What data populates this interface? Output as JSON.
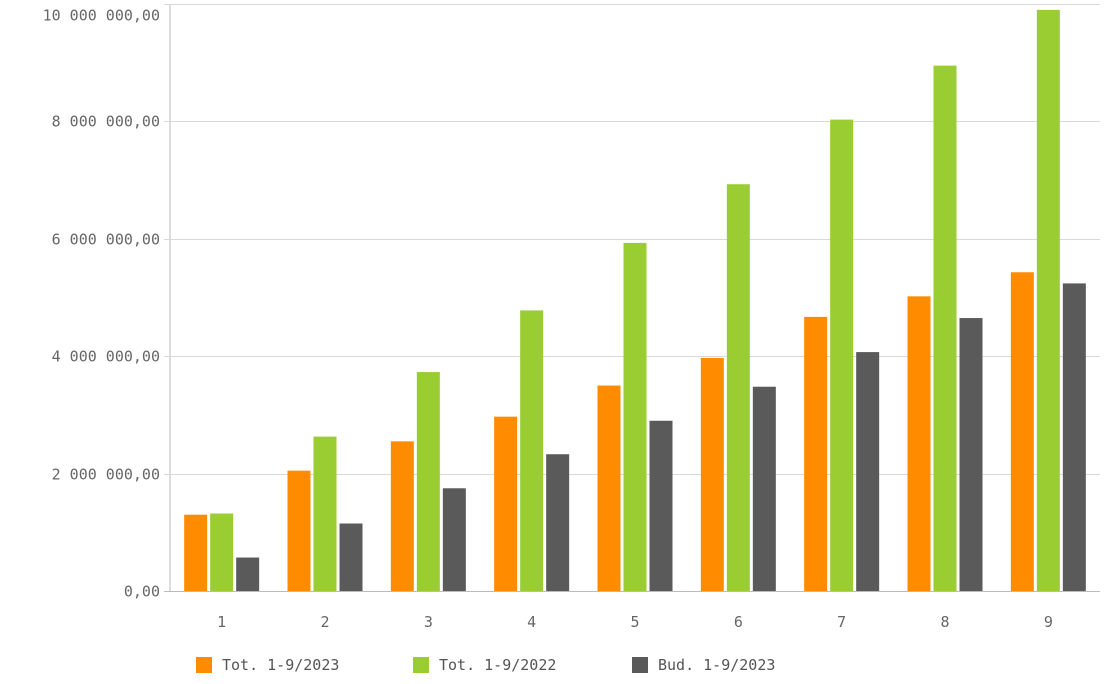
{
  "chart_data": {
    "type": "bar",
    "categories": [
      "1",
      "2",
      "3",
      "4",
      "5",
      "6",
      "7",
      "8",
      "9"
    ],
    "series": [
      {
        "name": "Tot. 1-9/2023",
        "color": "#ff8c00",
        "values": [
          1300000,
          2050000,
          2550000,
          2970000,
          3500000,
          3970000,
          4670000,
          5020000,
          5430000
        ]
      },
      {
        "name": "Tot. 1-9/2022",
        "color": "#9acd32",
        "values": [
          1320000,
          2630000,
          3730000,
          4780000,
          5930000,
          6930000,
          8030000,
          8950000,
          9900000
        ]
      },
      {
        "name": "Bud. 1-9/2023",
        "color": "#5a5a5a",
        "values": [
          570000,
          1150000,
          1750000,
          2330000,
          2900000,
          3480000,
          4070000,
          4650000,
          5240000
        ]
      }
    ],
    "yticks": [
      0,
      2000000,
      4000000,
      6000000,
      8000000,
      10000000
    ],
    "ytick_labels": [
      "0,00",
      "2 000 000,00",
      "4 000 000,00",
      "6 000 000,00",
      "8 000 000,00",
      "10 000 000,00"
    ],
    "ylim": [
      0,
      10000000
    ],
    "grid": true,
    "legend_position": "bottom-left"
  }
}
